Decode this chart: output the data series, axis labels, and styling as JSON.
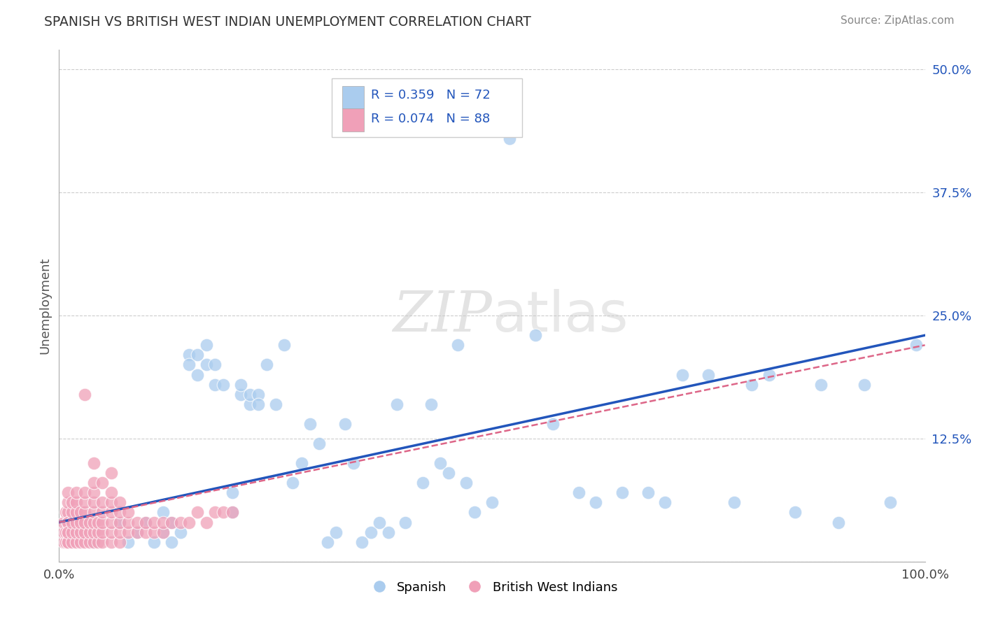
{
  "title": "SPANISH VS BRITISH WEST INDIAN UNEMPLOYMENT CORRELATION CHART",
  "source": "Source: ZipAtlas.com",
  "ylabel": "Unemployment",
  "xlim": [
    0.0,
    1.0
  ],
  "ylim": [
    0.0,
    0.52
  ],
  "ytick_vals": [
    0.0,
    0.125,
    0.25,
    0.375,
    0.5
  ],
  "ytick_labels": [
    "",
    "12.5%",
    "25.0%",
    "37.5%",
    "50.0%"
  ],
  "xtick_vals": [
    0.0,
    1.0
  ],
  "xtick_labels": [
    "0.0%",
    "100.0%"
  ],
  "legend_labels": [
    "Spanish",
    "British West Indians"
  ],
  "blue_color": "#aaccee",
  "pink_color": "#f0a0b8",
  "blue_line_color": "#2255bb",
  "pink_line_color": "#dd6688",
  "R_blue": 0.359,
  "N_blue": 72,
  "R_pink": 0.074,
  "N_pink": 88,
  "grid_color": "#cccccc",
  "background_color": "#ffffff",
  "blue_scatter_x": [
    0.04,
    0.07,
    0.08,
    0.09,
    0.1,
    0.11,
    0.12,
    0.12,
    0.13,
    0.13,
    0.14,
    0.15,
    0.15,
    0.16,
    0.16,
    0.17,
    0.17,
    0.18,
    0.18,
    0.19,
    0.2,
    0.2,
    0.21,
    0.21,
    0.22,
    0.22,
    0.23,
    0.23,
    0.24,
    0.25,
    0.26,
    0.27,
    0.28,
    0.29,
    0.3,
    0.31,
    0.32,
    0.33,
    0.34,
    0.35,
    0.36,
    0.37,
    0.38,
    0.39,
    0.4,
    0.42,
    0.43,
    0.44,
    0.45,
    0.46,
    0.47,
    0.48,
    0.5,
    0.52,
    0.55,
    0.57,
    0.6,
    0.62,
    0.65,
    0.68,
    0.7,
    0.72,
    0.75,
    0.78,
    0.8,
    0.82,
    0.85,
    0.88,
    0.9,
    0.93,
    0.96,
    0.99
  ],
  "blue_scatter_y": [
    0.02,
    0.04,
    0.02,
    0.03,
    0.04,
    0.02,
    0.03,
    0.05,
    0.02,
    0.04,
    0.03,
    0.21,
    0.2,
    0.21,
    0.19,
    0.22,
    0.2,
    0.18,
    0.2,
    0.18,
    0.05,
    0.07,
    0.17,
    0.18,
    0.16,
    0.17,
    0.17,
    0.16,
    0.2,
    0.16,
    0.22,
    0.08,
    0.1,
    0.14,
    0.12,
    0.02,
    0.03,
    0.14,
    0.1,
    0.02,
    0.03,
    0.04,
    0.03,
    0.16,
    0.04,
    0.08,
    0.16,
    0.1,
    0.09,
    0.22,
    0.08,
    0.05,
    0.06,
    0.43,
    0.23,
    0.14,
    0.07,
    0.06,
    0.07,
    0.07,
    0.06,
    0.19,
    0.19,
    0.06,
    0.18,
    0.19,
    0.05,
    0.18,
    0.04,
    0.18,
    0.06,
    0.22
  ],
  "pink_scatter_x": [
    0.005,
    0.005,
    0.005,
    0.008,
    0.008,
    0.008,
    0.01,
    0.01,
    0.01,
    0.01,
    0.01,
    0.01,
    0.01,
    0.01,
    0.01,
    0.015,
    0.015,
    0.015,
    0.015,
    0.015,
    0.02,
    0.02,
    0.02,
    0.02,
    0.02,
    0.02,
    0.025,
    0.025,
    0.025,
    0.025,
    0.03,
    0.03,
    0.03,
    0.03,
    0.03,
    0.03,
    0.035,
    0.035,
    0.035,
    0.04,
    0.04,
    0.04,
    0.04,
    0.04,
    0.04,
    0.04,
    0.045,
    0.045,
    0.045,
    0.05,
    0.05,
    0.05,
    0.05,
    0.05,
    0.06,
    0.06,
    0.06,
    0.06,
    0.06,
    0.06,
    0.07,
    0.07,
    0.07,
    0.07,
    0.07,
    0.08,
    0.08,
    0.08,
    0.09,
    0.09,
    0.1,
    0.1,
    0.11,
    0.11,
    0.12,
    0.12,
    0.13,
    0.14,
    0.15,
    0.16,
    0.17,
    0.18,
    0.19,
    0.2,
    0.03,
    0.04,
    0.05,
    0.06
  ],
  "pink_scatter_y": [
    0.02,
    0.03,
    0.04,
    0.02,
    0.03,
    0.05,
    0.02,
    0.03,
    0.04,
    0.05,
    0.06,
    0.07,
    0.02,
    0.04,
    0.03,
    0.02,
    0.03,
    0.04,
    0.05,
    0.06,
    0.02,
    0.03,
    0.04,
    0.05,
    0.06,
    0.07,
    0.02,
    0.03,
    0.04,
    0.05,
    0.02,
    0.03,
    0.04,
    0.05,
    0.06,
    0.07,
    0.02,
    0.03,
    0.04,
    0.02,
    0.03,
    0.04,
    0.05,
    0.06,
    0.07,
    0.08,
    0.02,
    0.03,
    0.04,
    0.02,
    0.03,
    0.04,
    0.05,
    0.06,
    0.02,
    0.03,
    0.04,
    0.05,
    0.06,
    0.07,
    0.02,
    0.03,
    0.04,
    0.05,
    0.06,
    0.03,
    0.04,
    0.05,
    0.03,
    0.04,
    0.03,
    0.04,
    0.03,
    0.04,
    0.03,
    0.04,
    0.04,
    0.04,
    0.04,
    0.05,
    0.04,
    0.05,
    0.05,
    0.05,
    0.17,
    0.1,
    0.08,
    0.09
  ],
  "blue_trend_x": [
    0.0,
    1.0
  ],
  "blue_trend_y": [
    0.04,
    0.23
  ],
  "pink_trend_x": [
    0.0,
    1.0
  ],
  "pink_trend_y": [
    0.04,
    0.22
  ]
}
